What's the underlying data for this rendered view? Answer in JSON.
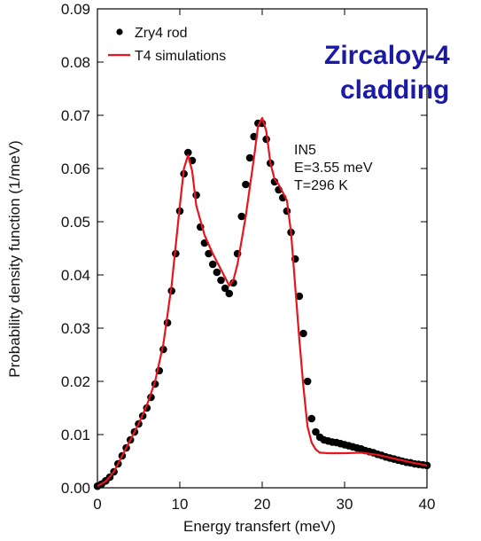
{
  "chart_data": {
    "type": "line",
    "xlabel": "Energy transfert (meV)",
    "ylabel": "Probability density function (1/meV)",
    "xlim": [
      0,
      40
    ],
    "ylim": [
      0,
      0.09
    ],
    "xticks": [
      0,
      10,
      20,
      30,
      40
    ],
    "yticks": [
      "0.00",
      "0.01",
      "0.02",
      "0.03",
      "0.04",
      "0.05",
      "0.06",
      "0.07",
      "0.08",
      "0.09"
    ],
    "grid": false,
    "legend_position": "top-left",
    "annotation_title": [
      "Zircaloy-4",
      "cladding"
    ],
    "annotation_title_color": "#1a1aa6",
    "conditions": [
      "IN5",
      "E=3.55 meV",
      "T=296 K"
    ],
    "series": [
      {
        "name": "Zry4 rod",
        "style": "markers",
        "color": "#000000",
        "x": [
          0.0,
          0.5,
          1.0,
          1.5,
          2.0,
          2.5,
          3.0,
          3.5,
          4.0,
          4.5,
          5.0,
          5.5,
          6.0,
          6.5,
          7.0,
          7.5,
          8.0,
          8.5,
          9.0,
          9.5,
          10.0,
          10.5,
          11.0,
          11.5,
          12.0,
          12.5,
          13.0,
          13.5,
          14.0,
          14.5,
          15.0,
          15.5,
          16.0,
          16.5,
          17.0,
          17.5,
          18.0,
          18.5,
          19.0,
          19.5,
          20.0,
          20.5,
          21.0,
          21.5,
          22.0,
          22.5,
          23.0,
          23.5,
          24.0,
          24.5,
          25.0,
          25.5,
          26.0,
          26.5,
          27.0,
          27.5,
          28.0,
          28.5,
          29.0,
          29.5,
          30.0,
          30.5,
          31.0,
          31.5,
          32.0,
          32.5,
          33.0,
          33.5,
          34.0,
          34.5,
          35.0,
          35.5,
          36.0,
          36.5,
          37.0,
          37.5,
          38.0,
          38.5,
          39.0,
          39.5,
          40.0
        ],
        "y": [
          0.0003,
          0.0007,
          0.0013,
          0.002,
          0.003,
          0.0045,
          0.006,
          0.0075,
          0.009,
          0.0105,
          0.012,
          0.0135,
          0.015,
          0.017,
          0.0195,
          0.022,
          0.026,
          0.031,
          0.037,
          0.044,
          0.052,
          0.059,
          0.063,
          0.0615,
          0.055,
          0.049,
          0.046,
          0.044,
          0.042,
          0.0405,
          0.039,
          0.0375,
          0.0365,
          0.0385,
          0.044,
          0.051,
          0.057,
          0.062,
          0.066,
          0.0685,
          0.0685,
          0.0655,
          0.061,
          0.0575,
          0.056,
          0.0545,
          0.052,
          0.048,
          0.043,
          0.036,
          0.029,
          0.02,
          0.013,
          0.0105,
          0.0095,
          0.009,
          0.0088,
          0.0086,
          0.0085,
          0.0083,
          0.0081,
          0.0079,
          0.0077,
          0.0075,
          0.0073,
          0.007,
          0.0068,
          0.0066,
          0.0063,
          0.0061,
          0.0058,
          0.0056,
          0.0054,
          0.0052,
          0.005,
          0.0048,
          0.0047,
          0.0045,
          0.0044,
          0.0043,
          0.0042
        ]
      },
      {
        "name": "T4 simulations",
        "style": "line",
        "color": "#e8141e",
        "x": [
          0,
          1,
          2,
          3,
          4,
          5,
          6,
          7,
          8,
          9,
          10,
          10.5,
          11,
          11.5,
          12,
          13,
          14,
          15,
          15.5,
          16,
          16.5,
          17,
          18,
          19,
          19.5,
          20,
          20.5,
          21,
          21.5,
          22,
          22.5,
          23,
          23.5,
          24,
          24.5,
          25,
          25.5,
          26,
          26.5,
          27,
          28,
          30,
          32,
          34,
          36,
          38,
          40
        ],
        "y": [
          0.0003,
          0.0012,
          0.003,
          0.006,
          0.009,
          0.012,
          0.0155,
          0.02,
          0.027,
          0.038,
          0.053,
          0.06,
          0.0625,
          0.0595,
          0.053,
          0.0475,
          0.044,
          0.041,
          0.0395,
          0.038,
          0.039,
          0.042,
          0.051,
          0.062,
          0.068,
          0.0695,
          0.067,
          0.061,
          0.058,
          0.057,
          0.0555,
          0.054,
          0.048,
          0.038,
          0.028,
          0.019,
          0.0115,
          0.0085,
          0.0072,
          0.0066,
          0.0065,
          0.0065,
          0.0066,
          0.0062,
          0.0055,
          0.0048,
          0.0042
        ]
      }
    ]
  }
}
